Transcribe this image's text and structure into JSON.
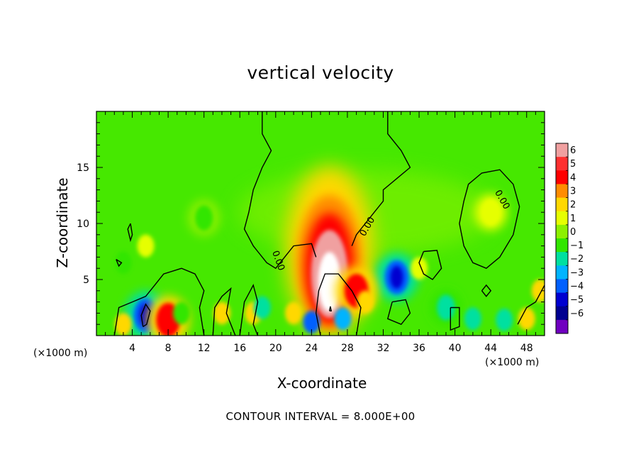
{
  "chart_data": {
    "type": "heatmap",
    "title": "vertical velocity",
    "xlabel": "X-coordinate",
    "ylabel": "Z-coordinate",
    "x_unit": "(×1000 m)",
    "z_unit": "(×1000 m)",
    "xlim": [
      0,
      50
    ],
    "ylim": [
      0,
      20
    ],
    "x_ticks": [
      4,
      8,
      12,
      16,
      20,
      24,
      28,
      32,
      36,
      40,
      44,
      48
    ],
    "y_ticks": [
      5,
      10,
      15
    ],
    "colorbar": {
      "levels": [
        6,
        5,
        4,
        3,
        2,
        1,
        0,
        -1,
        -2,
        -3,
        -4,
        -5,
        -6
      ],
      "colors": [
        "#f0a0a0",
        "#ff3030",
        "#ff0000",
        "#ff8c00",
        "#ffd800",
        "#e6ff00",
        "#8cf000",
        "#32e600",
        "#00e0a0",
        "#00b4ff",
        "#0060ff",
        "#0000d0",
        "#000090",
        "#7000c0"
      ]
    },
    "contour_interval": "CONTOUR INTERVAL = 8.000E+00",
    "contour_label": "0.00",
    "features": [
      {
        "name": "updraft core",
        "x": 26,
        "z": 4.5,
        "w": 8
      },
      {
        "name": "downdraft",
        "x": 33.5,
        "z": 5.2,
        "w": -5
      },
      {
        "name": "downdraft",
        "x": 5.5,
        "z": 1.8,
        "w": -5
      },
      {
        "name": "updraft",
        "x": 8,
        "z": 1.4,
        "w": 4
      },
      {
        "name": "updraft",
        "x": 29,
        "z": 4.0,
        "w": 4
      },
      {
        "name": "weak downdraft",
        "x": 39,
        "z": 2.5,
        "w": -2.5
      },
      {
        "name": "weak downdraft",
        "x": 12,
        "z": 10.5,
        "w": -1.5
      },
      {
        "name": "weak updraft",
        "x": 44,
        "z": 11,
        "w": 0.8
      }
    ]
  },
  "note": "CONTOUR INTERVAL = 8.000E+00"
}
